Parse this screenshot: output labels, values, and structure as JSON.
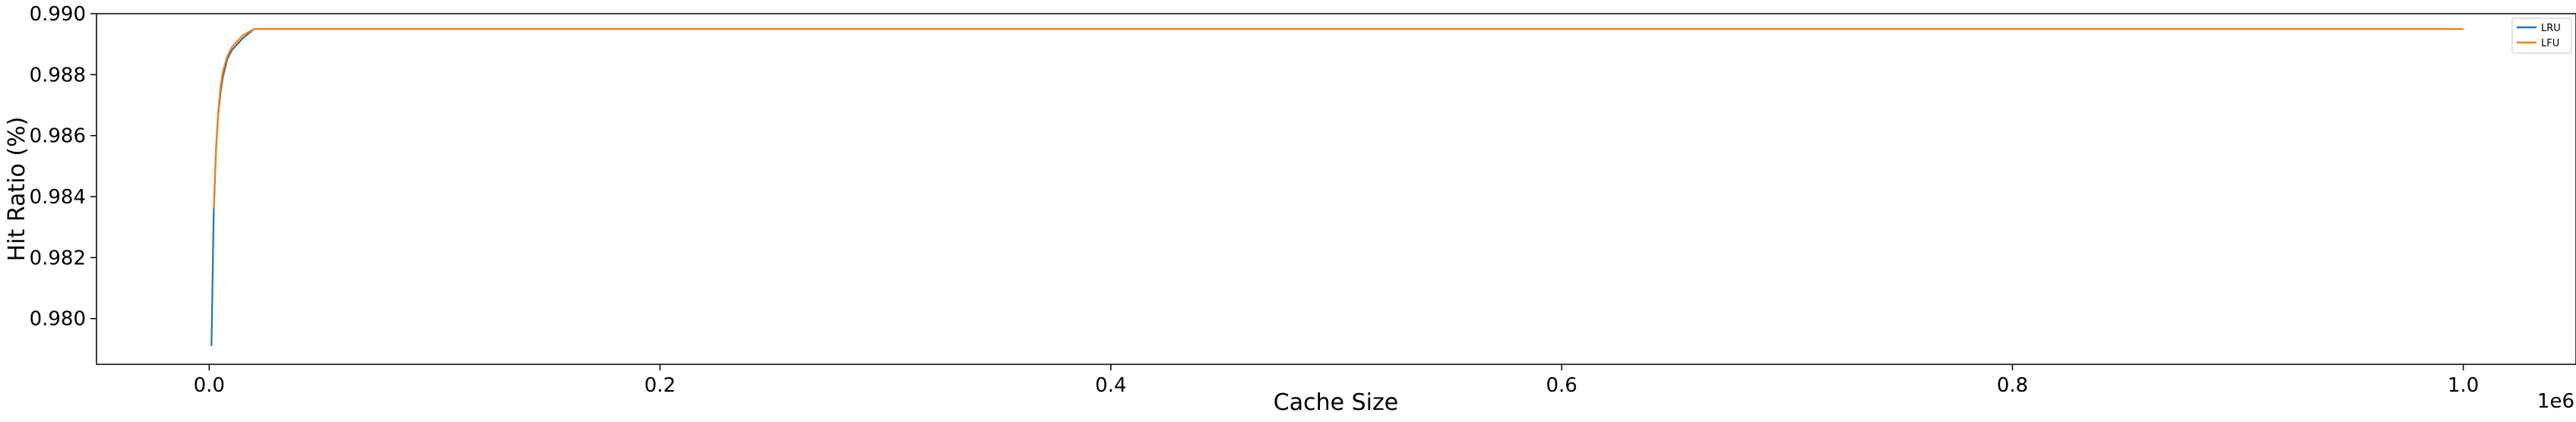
{
  "chart_data": {
    "type": "line",
    "xlabel": "Cache Size",
    "ylabel": "Hit Ratio (%)",
    "x_offset_label": "1e6",
    "xlim": [
      -0.05,
      1.05
    ],
    "ylim": [
      0.9785,
      0.99
    ],
    "x_ticks": [
      {
        "value": 0.0,
        "label": "0.0"
      },
      {
        "value": 0.2,
        "label": "0.2"
      },
      {
        "value": 0.4,
        "label": "0.4"
      },
      {
        "value": 0.6,
        "label": "0.6"
      },
      {
        "value": 0.8,
        "label": "0.8"
      },
      {
        "value": 1.0,
        "label": "1.0"
      }
    ],
    "y_ticks": [
      {
        "value": 0.98,
        "label": "0.980"
      },
      {
        "value": 0.982,
        "label": "0.982"
      },
      {
        "value": 0.984,
        "label": "0.984"
      },
      {
        "value": 0.986,
        "label": "0.986"
      },
      {
        "value": 0.988,
        "label": "0.988"
      },
      {
        "value": 0.99,
        "label": "0.990"
      }
    ],
    "grid": false,
    "legend_position": "top-right",
    "series": [
      {
        "name": "LRU",
        "color": "#1f77b4",
        "x": [
          0.001,
          0.002,
          0.003,
          0.004,
          0.005,
          0.006,
          0.008,
          0.01,
          0.015,
          0.02,
          0.03,
          0.1,
          0.5,
          1.0
        ],
        "y": [
          0.9791,
          0.9835,
          0.9855,
          0.9867,
          0.9874,
          0.9879,
          0.9885,
          0.9888,
          0.9892,
          0.9895,
          0.9895,
          0.9895,
          0.9895,
          0.9895
        ]
      },
      {
        "name": "LFU",
        "color": "#ff7f0e",
        "x": [
          0.002,
          0.003,
          0.004,
          0.005,
          0.006,
          0.008,
          0.01,
          0.015,
          0.02,
          0.03,
          0.1,
          0.5,
          1.0
        ],
        "y": [
          0.9836,
          0.9856,
          0.9868,
          0.9876,
          0.9881,
          0.9886,
          0.9889,
          0.9893,
          0.9895,
          0.9895,
          0.9895,
          0.9895,
          0.9895
        ]
      }
    ]
  }
}
